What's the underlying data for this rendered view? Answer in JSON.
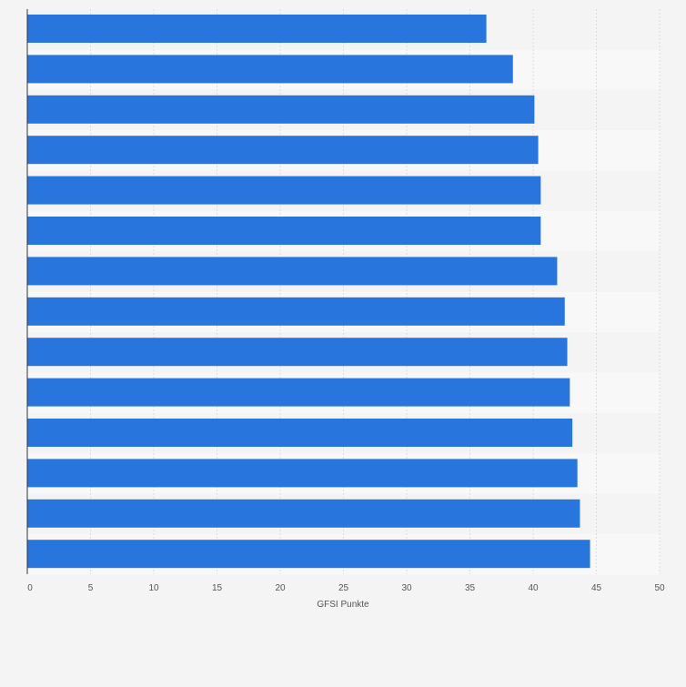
{
  "chart_data": {
    "type": "bar",
    "orientation": "horizontal",
    "categories": [
      "",
      "",
      "",
      "",
      "",
      "",
      "",
      "",
      "",
      "",
      "",
      "",
      "",
      ""
    ],
    "values": [
      36.3,
      38.4,
      40.1,
      40.4,
      40.6,
      40.6,
      41.9,
      42.5,
      42.7,
      42.9,
      43.1,
      43.5,
      43.7,
      44.5
    ],
    "xlabel": "GFSI Punkte",
    "ylabel": "",
    "xlim": [
      0,
      50
    ],
    "ticks": [
      0,
      5,
      10,
      15,
      20,
      25,
      30,
      35,
      40,
      45,
      50
    ],
    "tick_labels": [
      "0",
      "5",
      "10",
      "15",
      "20",
      "25",
      "30",
      "35",
      "40",
      "45",
      "50"
    ],
    "grid": true,
    "bar_color": "#2876dd",
    "band_colors": [
      "#f4f4f4",
      "#f8f8f8"
    ]
  }
}
